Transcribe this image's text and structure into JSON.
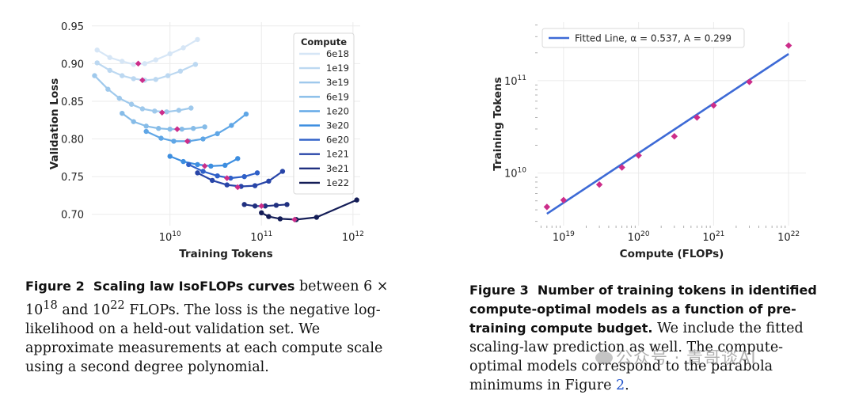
{
  "chart_data": [
    {
      "type": "line",
      "xscale": "log",
      "xlabel": "Training Tokens",
      "ylabel": "Validation Loss",
      "xlim": [
        1400000000.0,
        1200000000000.0
      ],
      "ylim": [
        0.685,
        0.955
      ],
      "x_ticks": [
        {
          "value": 10000000000.0,
          "base": "10",
          "exp": "10"
        },
        {
          "value": 100000000000.0,
          "base": "10",
          "exp": "11"
        },
        {
          "value": 1000000000000.0,
          "base": "10",
          "exp": "12"
        }
      ],
      "y_ticks": [
        {
          "value": 0.7,
          "label": "0.70"
        },
        {
          "value": 0.75,
          "label": "0.75"
        },
        {
          "value": 0.8,
          "label": "0.80"
        },
        {
          "value": 0.85,
          "label": "0.85"
        },
        {
          "value": 0.9,
          "label": "0.90"
        },
        {
          "value": 0.95,
          "label": "0.95"
        }
      ],
      "legend_title": "Compute",
      "series": [
        {
          "name": "6e18",
          "color": "#d6e6f6",
          "x": [
            1600000000.0,
            2200000000.0,
            3000000000.0,
            4000000000.0,
            5300000000.0,
            7000000000.0,
            10000000000.0,
            14000000000.0,
            20000000000.0
          ],
          "y": [
            0.918,
            0.908,
            0.903,
            0.899,
            0.9,
            0.905,
            0.913,
            0.921,
            0.932
          ],
          "min": {
            "x": 4500000000.0,
            "y": 0.9
          }
        },
        {
          "name": "1e19",
          "color": "#bcd8f1",
          "x": [
            1600000000.0,
            2200000000.0,
            3000000000.0,
            4000000000.0,
            5300000000.0,
            7000000000.0,
            9500000000.0,
            13000000000.0,
            19000000000.0
          ],
          "y": [
            0.901,
            0.891,
            0.884,
            0.88,
            0.878,
            0.879,
            0.884,
            0.89,
            0.899
          ],
          "min": {
            "x": 5000000000.0,
            "y": 0.878
          }
        },
        {
          "name": "3e19",
          "color": "#9fc9ec",
          "x": [
            1500000000.0,
            2100000000.0,
            2800000000.0,
            3800000000.0,
            5000000000.0,
            6800000000.0,
            9200000000.0,
            12500000000.0,
            17000000000.0
          ],
          "y": [
            0.884,
            0.866,
            0.854,
            0.846,
            0.84,
            0.837,
            0.836,
            0.838,
            0.841
          ],
          "min": {
            "x": 8200000000.0,
            "y": 0.835
          }
        },
        {
          "name": "6e19",
          "color": "#86bce8",
          "x": [
            3000000000.0,
            4000000000.0,
            5500000000.0,
            7500000000.0,
            10000000000.0,
            13500000000.0,
            18000000000.0,
            24000000000.0
          ],
          "y": [
            0.834,
            0.823,
            0.817,
            0.814,
            0.813,
            0.813,
            0.814,
            0.816
          ],
          "min": {
            "x": 12000000000.0,
            "y": 0.813
          }
        },
        {
          "name": "1e20",
          "color": "#5fa6e6",
          "x": [
            5500000000.0,
            8000000000.0,
            11000000000.0,
            16000000000.0,
            23000000000.0,
            33000000000.0,
            47000000000.0,
            68000000000.0
          ],
          "y": [
            0.81,
            0.801,
            0.797,
            0.797,
            0.8,
            0.807,
            0.818,
            0.833
          ],
          "min": {
            "x": 15500000000.0,
            "y": 0.797
          }
        },
        {
          "name": "3e20",
          "color": "#3d8ee0",
          "x": [
            10000000000.0,
            14000000000.0,
            20000000000.0,
            28000000000.0,
            40000000000.0,
            55000000000.0
          ],
          "y": [
            0.777,
            0.77,
            0.766,
            0.764,
            0.765,
            0.774
          ],
          "min": {
            "x": 24000000000.0,
            "y": 0.764
          }
        },
        {
          "name": "6e20",
          "color": "#2f60c8",
          "x": [
            16000000000.0,
            23000000000.0,
            33000000000.0,
            46000000000.0,
            65000000000.0,
            90000000000.0
          ],
          "y": [
            0.766,
            0.757,
            0.751,
            0.748,
            0.75,
            0.755
          ],
          "min": {
            "x": 42000000000.0,
            "y": 0.748
          }
        },
        {
          "name": "1e21",
          "color": "#2845a8",
          "x": [
            20000000000.0,
            29000000000.0,
            42000000000.0,
            60000000000.0,
            85000000000.0,
            120000000000.0,
            170000000000.0
          ],
          "y": [
            0.755,
            0.745,
            0.739,
            0.737,
            0.738,
            0.744,
            0.757
          ],
          "min": {
            "x": 55000000000.0,
            "y": 0.736
          }
        },
        {
          "name": "3e21",
          "color": "#203080",
          "x": [
            65000000000.0,
            85000000000.0,
            110000000000.0,
            145000000000.0,
            190000000000.0
          ],
          "y": [
            0.713,
            0.711,
            0.711,
            0.712,
            0.713
          ],
          "min": {
            "x": 100000000000.0,
            "y": 0.711
          }
        },
        {
          "name": "1e22",
          "color": "#141d57",
          "x": [
            100000000000.0,
            120000000000.0,
            160000000000.0,
            240000000000.0,
            400000000000.0,
            1100000000000.0
          ],
          "y": [
            0.702,
            0.697,
            0.694,
            0.693,
            0.696,
            0.719
          ],
          "min": {
            "x": 230000000000.0,
            "y": 0.693
          }
        }
      ]
    },
    {
      "type": "scatter",
      "xscale": "log",
      "yscale": "log",
      "xlabel": "Compute (FLOPs)",
      "ylabel": "Training Tokens",
      "xlim": [
        4.5e+18,
        1.7e+22
      ],
      "ylim": [
        2700000000.0,
        430000000000.0
      ],
      "x_ticks": [
        {
          "value": 1e+19,
          "base": "10",
          "exp": "19"
        },
        {
          "value": 1e+20,
          "base": "10",
          "exp": "20"
        },
        {
          "value": 1e+21,
          "base": "10",
          "exp": "21"
        },
        {
          "value": 1e+22,
          "base": "10",
          "exp": "22"
        }
      ],
      "y_ticks": [
        {
          "value": 10000000000.0,
          "base": "10",
          "exp": "10"
        },
        {
          "value": 100000000000.0,
          "base": "10",
          "exp": "11"
        }
      ],
      "points": {
        "color": "#cc2d8a",
        "x": [
          6e+18,
          1e+19,
          3e+19,
          6e+19,
          1e+20,
          3e+20,
          6e+20,
          1e+21,
          3e+21,
          1e+22
        ],
        "y": [
          4300000000.0,
          5100000000.0,
          7500000000.0,
          11500000000.0,
          15500000000.0,
          25000000000.0,
          40000000000.0,
          54000000000.0,
          97000000000.0,
          240000000000.0
        ]
      },
      "fit": {
        "color": "#3d6ad6",
        "alpha": 0.537,
        "A": 0.299
      },
      "legend_label": "Fitted Line, α = 0.537, A = 0.299"
    }
  ],
  "captions": {
    "fig2": {
      "label": "Figure 2",
      "title": "Scaling law IsoFLOPs curves",
      "text_before": "between 6 × 10",
      "exp1": "18",
      "text_mid": " and 10",
      "exp2": "22",
      "text_after": " FLOPs.  The loss is the negative log-likelihood on a held-out validation set. We approximate measurements at each compute scale using a second degree polynomial."
    },
    "fig3": {
      "label": "Figure 3",
      "title": "Number of training tokens in identified compute-optimal models as a function of pre-training compute budget.",
      "text": " We include the fitted scaling-law prediction as well. The compute-optimal models correspond to the parabola minimums in Figure ",
      "ref": "2",
      "end": "."
    }
  },
  "watermark": "公众号 · 青哥谈AI"
}
